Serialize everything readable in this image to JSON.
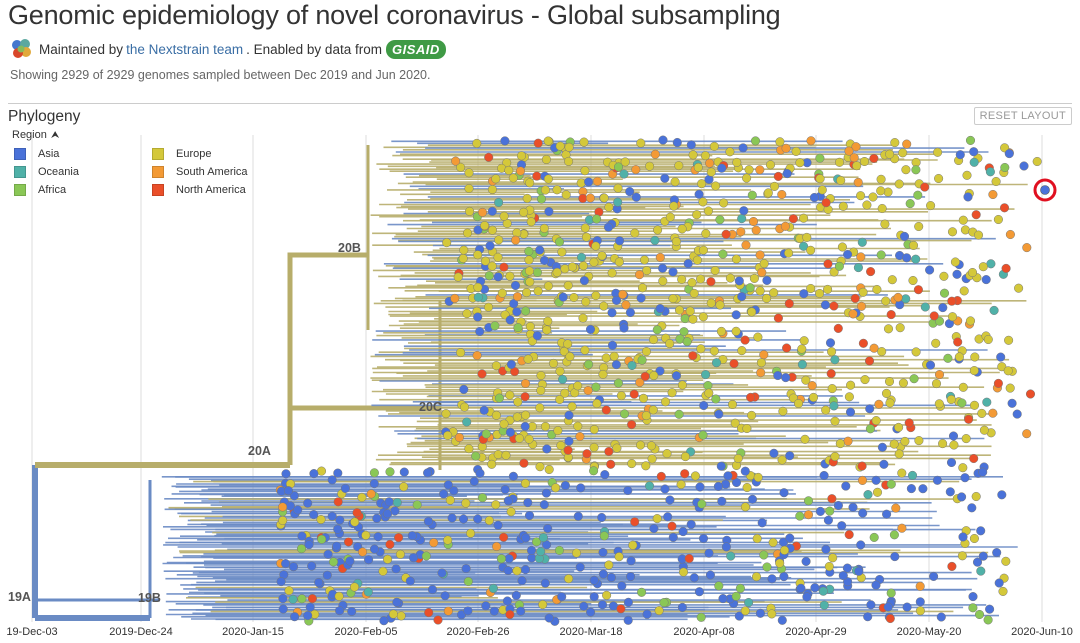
{
  "header": {
    "title": "Genomic epidemiology of novel coronavirus - Global subsampling",
    "maintained_prefix": "Maintained by",
    "team_link": "the Nextstrain team",
    "enabled_text": ". Enabled by data from",
    "gisaid_label": "GISAID",
    "showing": "Showing 2929 of 2929 genomes sampled between Dec 2019 and Jun 2020."
  },
  "panel": {
    "title": "Phylogeny",
    "reset_label": "RESET LAYOUT",
    "legend_title": "Region",
    "legend": [
      {
        "label": "Asia",
        "color": "#4a72d9"
      },
      {
        "label": "Oceania",
        "color": "#50b1a8"
      },
      {
        "label": "Africa",
        "color": "#8ac756"
      },
      {
        "label": "Europe",
        "color": "#d4c83a"
      },
      {
        "label": "South America",
        "color": "#f39a35"
      },
      {
        "label": "North America",
        "color": "#ea4f29"
      }
    ]
  },
  "axis": {
    "ticks": [
      "19-Dec-03",
      "2019-Dec-24",
      "2020-Jan-15",
      "2020-Feb-05",
      "2020-Feb-26",
      "2020-Mar-18",
      "2020-Apr-08",
      "2020-Apr-29",
      "2020-May-20",
      "2020-Jun-10"
    ]
  },
  "clades": [
    "19A",
    "19B",
    "20A",
    "20B",
    "20C"
  ],
  "colors": {
    "branch_blue": "#6a8bc4",
    "branch_olive": "#b7ad6a",
    "highlight_ring": "#e01020"
  }
}
